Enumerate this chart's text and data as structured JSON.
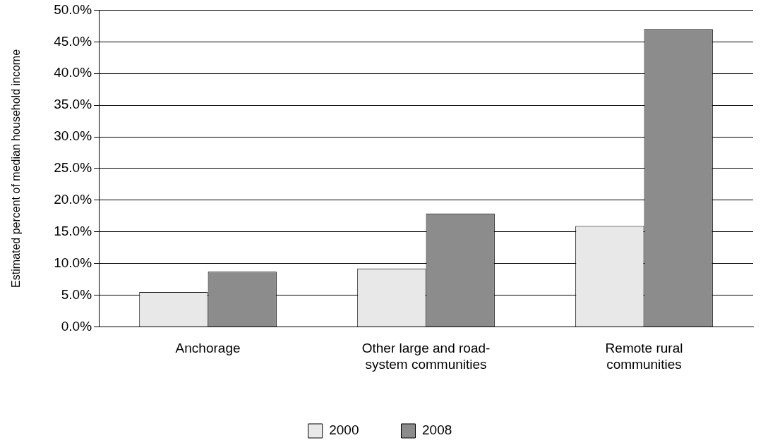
{
  "chart_data": {
    "type": "bar",
    "ylabel": "Estimated percent of median household income",
    "categories": [
      "Anchorage",
      "Other large and road-system communities",
      "Remote rural communities"
    ],
    "series": [
      {
        "name": "2000",
        "color": "#e8e8e8",
        "values": [
          5.5,
          9.2,
          15.9
        ]
      },
      {
        "name": "2008",
        "color": "#8c8c8c",
        "values": [
          8.7,
          17.9,
          47.0
        ]
      }
    ],
    "ylim": [
      0,
      50
    ],
    "yticks": [
      {
        "value": 0,
        "label": "0.0%"
      },
      {
        "value": 5,
        "label": "5.0%"
      },
      {
        "value": 10,
        "label": "10.0%"
      },
      {
        "value": 15,
        "label": "15.0%"
      },
      {
        "value": 20,
        "label": "20.0%"
      },
      {
        "value": 25,
        "label": "25.0%"
      },
      {
        "value": 30,
        "label": "30.0%"
      },
      {
        "value": 35,
        "label": "35.0%"
      },
      {
        "value": 40,
        "label": "40.0%"
      },
      {
        "value": 45,
        "label": "45.0%"
      },
      {
        "value": 50,
        "label": "50.0%"
      }
    ],
    "grid": "y",
    "legend": "bottom"
  }
}
